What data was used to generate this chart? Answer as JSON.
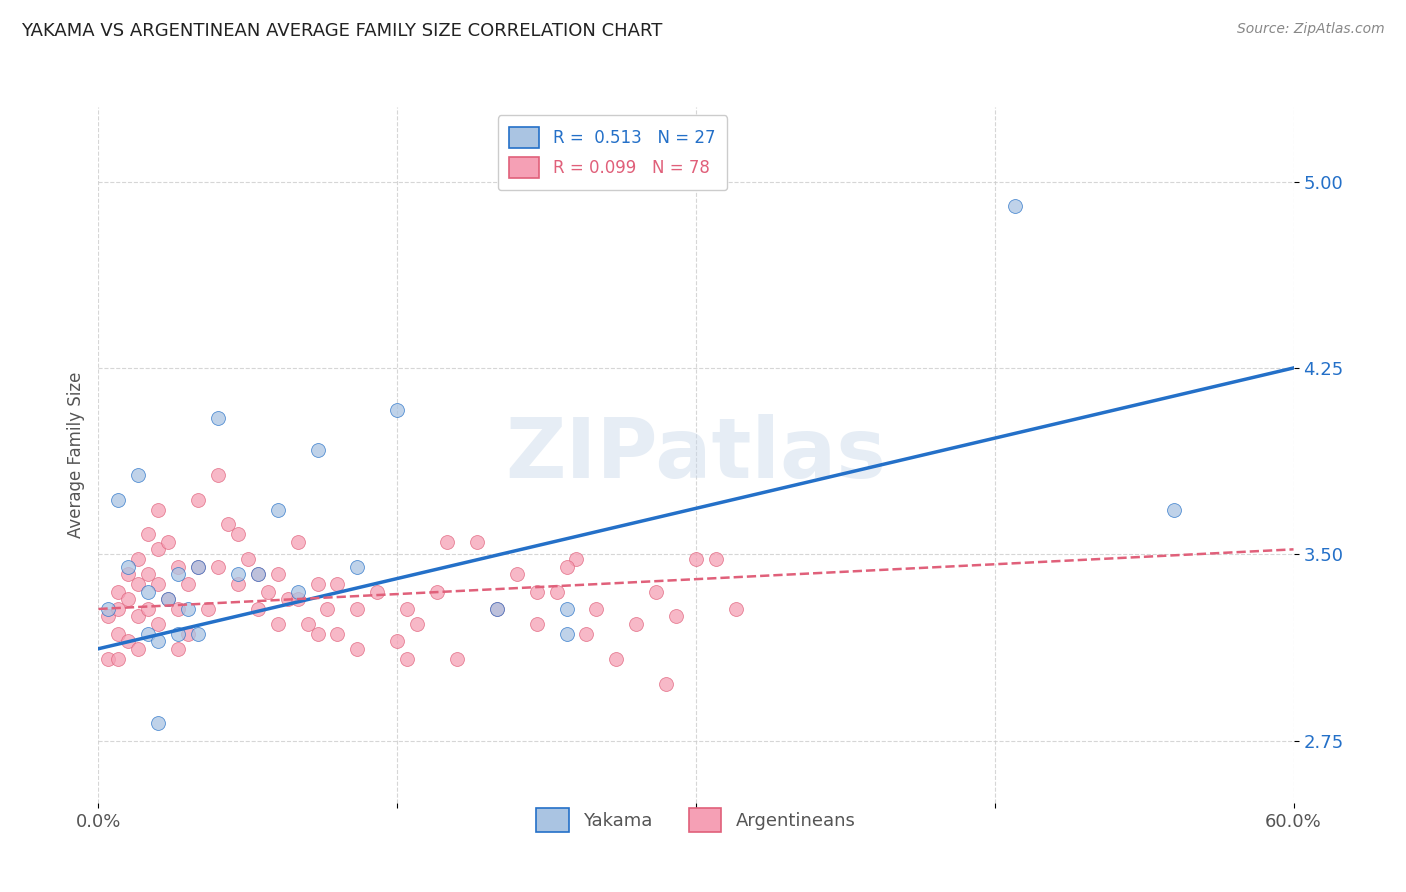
{
  "title": "YAKAMA VS ARGENTINEAN AVERAGE FAMILY SIZE CORRELATION CHART",
  "source": "Source: ZipAtlas.com",
  "ylabel": "Average Family Size",
  "xlim": [
    0.0,
    0.6
  ],
  "ylim": [
    2.5,
    5.3
  ],
  "yticks": [
    2.75,
    3.5,
    4.25,
    5.0
  ],
  "xticks": [
    0.0,
    0.15,
    0.3,
    0.45,
    0.6
  ],
  "xticklabels": [
    "0.0%",
    "",
    "",
    "",
    "60.0%"
  ],
  "background_color": "#ffffff",
  "grid_color": "#cccccc",
  "watermark": "ZIPatlas",
  "yakama_color": "#aac4e2",
  "argentinean_color": "#f5a0b5",
  "trend_yakama_color": "#2470c8",
  "trend_argentinean_color": "#e0607a",
  "yakama_points_x": [
    0.005,
    0.01,
    0.015,
    0.02,
    0.025,
    0.025,
    0.03,
    0.03,
    0.035,
    0.04,
    0.04,
    0.045,
    0.05,
    0.05,
    0.06,
    0.07,
    0.08,
    0.09,
    0.1,
    0.11,
    0.13,
    0.15,
    0.2,
    0.235,
    0.235,
    0.46,
    0.54
  ],
  "yakama_points_y": [
    3.28,
    3.72,
    3.45,
    3.82,
    3.18,
    3.35,
    3.15,
    2.82,
    3.32,
    3.18,
    3.42,
    3.28,
    3.18,
    3.45,
    4.05,
    3.42,
    3.42,
    3.68,
    3.35,
    3.92,
    3.45,
    4.08,
    3.28,
    3.28,
    3.18,
    4.9,
    3.68
  ],
  "argentinean_points_x": [
    0.005,
    0.005,
    0.01,
    0.01,
    0.01,
    0.01,
    0.015,
    0.015,
    0.015,
    0.02,
    0.02,
    0.02,
    0.02,
    0.025,
    0.025,
    0.025,
    0.03,
    0.03,
    0.03,
    0.03,
    0.035,
    0.035,
    0.04,
    0.04,
    0.04,
    0.045,
    0.045,
    0.05,
    0.05,
    0.055,
    0.06,
    0.06,
    0.065,
    0.07,
    0.07,
    0.075,
    0.08,
    0.08,
    0.085,
    0.09,
    0.09,
    0.095,
    0.1,
    0.1,
    0.105,
    0.11,
    0.11,
    0.115,
    0.12,
    0.12,
    0.13,
    0.13,
    0.14,
    0.15,
    0.155,
    0.16,
    0.17,
    0.18,
    0.19,
    0.2,
    0.21,
    0.22,
    0.23,
    0.24,
    0.245,
    0.25,
    0.26,
    0.27,
    0.28,
    0.285,
    0.29,
    0.3,
    0.155,
    0.175,
    0.22,
    0.235,
    0.31,
    0.32
  ],
  "argentinean_points_y": [
    3.25,
    3.08,
    3.35,
    3.28,
    3.18,
    3.08,
    3.42,
    3.32,
    3.15,
    3.48,
    3.38,
    3.25,
    3.12,
    3.58,
    3.42,
    3.28,
    3.68,
    3.52,
    3.38,
    3.22,
    3.55,
    3.32,
    3.45,
    3.28,
    3.12,
    3.38,
    3.18,
    3.72,
    3.45,
    3.28,
    3.82,
    3.45,
    3.62,
    3.58,
    3.38,
    3.48,
    3.42,
    3.28,
    3.35,
    3.42,
    3.22,
    3.32,
    3.55,
    3.32,
    3.22,
    3.38,
    3.18,
    3.28,
    3.38,
    3.18,
    3.28,
    3.12,
    3.35,
    3.15,
    3.08,
    3.22,
    3.35,
    3.08,
    3.55,
    3.28,
    3.42,
    3.22,
    3.35,
    3.48,
    3.18,
    3.28,
    3.08,
    3.22,
    3.35,
    2.98,
    3.25,
    3.48,
    3.28,
    3.55,
    3.35,
    3.45,
    3.48,
    3.28
  ],
  "trend_yakama_x0": 0.0,
  "trend_yakama_y0": 3.12,
  "trend_yakama_x1": 0.6,
  "trend_yakama_y1": 4.25,
  "trend_arg_x0": 0.0,
  "trend_arg_y0": 3.28,
  "trend_arg_x1": 0.6,
  "trend_arg_y1": 3.52
}
